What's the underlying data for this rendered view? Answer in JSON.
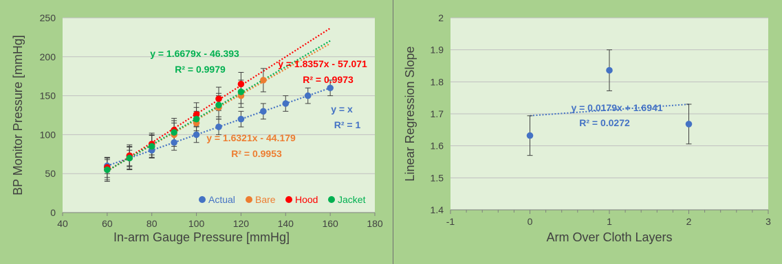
{
  "chart_data": [
    {
      "type": "scatter",
      "title": "",
      "xlabel": "In-arm Gauge Pressure [mmHg]",
      "ylabel": "BP Monitor Pressure [mmHg]",
      "xlim": [
        40,
        180
      ],
      "ylim": [
        0,
        250
      ],
      "xticks": [
        40,
        60,
        80,
        100,
        120,
        140,
        160,
        180
      ],
      "yticks": [
        0,
        50,
        100,
        150,
        200,
        250
      ],
      "grid": true,
      "legend_position": "bottom-right",
      "series": [
        {
          "name": "Actual",
          "color": "#4472c4",
          "x": [
            60,
            70,
            80,
            90,
            100,
            110,
            120,
            130,
            140,
            150,
            160
          ],
          "y": [
            60,
            70,
            80,
            90,
            100,
            110,
            120,
            130,
            140,
            150,
            160
          ],
          "error": [
            10,
            10,
            10,
            10,
            10,
            10,
            10,
            10,
            10,
            10,
            10
          ]
        },
        {
          "name": "Bare",
          "color": "#ed7d31",
          "x": [
            60,
            70,
            80,
            90,
            100,
            110,
            120,
            130
          ],
          "y": [
            55,
            70,
            85,
            100,
            115,
            135,
            150,
            170
          ],
          "error": [
            15,
            15,
            15,
            15,
            15,
            15,
            15,
            15
          ]
        },
        {
          "name": "Hood",
          "color": "#ff0000",
          "x": [
            60,
            70,
            80,
            90,
            100,
            110,
            120
          ],
          "y": [
            58,
            73,
            88,
            106,
            126,
            146,
            165
          ],
          "error": [
            13,
            14,
            14,
            15,
            15,
            15,
            15
          ]
        },
        {
          "name": "Jacket",
          "color": "#00b050",
          "x": [
            60,
            70,
            80,
            90,
            100,
            110,
            120
          ],
          "y": [
            55,
            70,
            85,
            103,
            120,
            138,
            155
          ],
          "error": [
            13,
            14,
            14,
            15,
            15,
            15,
            15
          ]
        }
      ],
      "trendlines": [
        {
          "series": "Actual",
          "slope": 1,
          "intercept": 0,
          "x_range": [
            60,
            160
          ],
          "color": "#4472c4",
          "equation": "y = x",
          "r2": "R² = 1"
        },
        {
          "series": "Bare",
          "slope": 1.6321,
          "intercept": -44.179,
          "x_range": [
            60,
            160
          ],
          "color": "#ed7d31",
          "equation": "y = 1.6321x - 44.179",
          "r2": "R² = 0.9953"
        },
        {
          "series": "Hood",
          "slope": 1.8357,
          "intercept": -57.071,
          "x_range": [
            60,
            160
          ],
          "color": "#ff0000",
          "equation": "y = 1.8357x - 57.071",
          "r2": "R² = 0.9973"
        },
        {
          "series": "Jacket",
          "slope": 1.6679,
          "intercept": -46.393,
          "x_range": [
            60,
            160
          ],
          "color": "#00b050",
          "equation": "y = 1.6679x - 46.393",
          "r2": "R² = 0.9979"
        }
      ]
    },
    {
      "type": "scatter",
      "title": "",
      "xlabel": "Arm Over Cloth Layers",
      "ylabel": "Linear Regression Slope",
      "xlim": [
        -1,
        3
      ],
      "ylim": [
        1.4,
        2
      ],
      "xticks": [
        -1,
        0,
        1,
        2,
        3
      ],
      "yticks": [
        1.4,
        1.5,
        1.6,
        1.7,
        1.8,
        1.9,
        2
      ],
      "grid": true,
      "series": [
        {
          "name": "",
          "color": "#4472c4",
          "x": [
            0,
            1,
            2
          ],
          "y": [
            1.632,
            1.836,
            1.668
          ],
          "error": [
            0.062,
            0.064,
            0.062
          ]
        }
      ],
      "trendlines": [
        {
          "slope": 0.0179,
          "intercept": 1.6941,
          "x_range": [
            0,
            2
          ],
          "color": "#4472c4",
          "equation": "y = 0.0179x + 1.6941",
          "r2": "R² = 0.0272"
        }
      ]
    }
  ]
}
